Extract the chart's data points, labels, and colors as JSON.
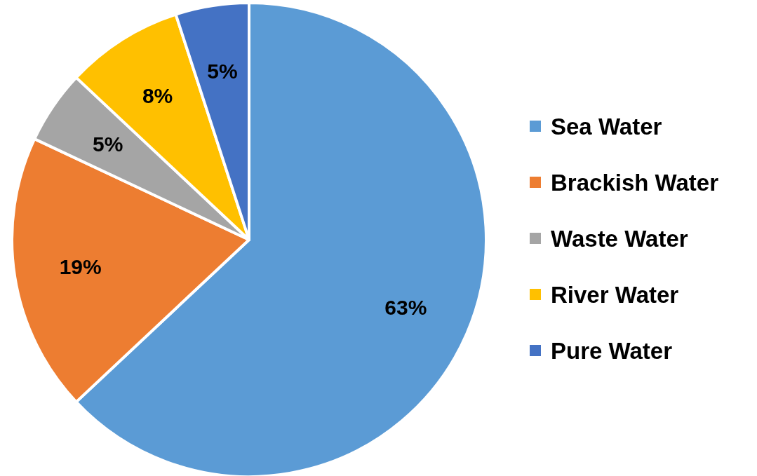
{
  "chart_data": {
    "type": "pie",
    "categories": [
      "Sea Water",
      "Brackish Water",
      "Waste Water",
      "River Water",
      "Pure Water"
    ],
    "values": [
      63,
      19,
      5,
      8,
      5
    ],
    "colors": [
      "#5b9bd5",
      "#ed7d31",
      "#a5a5a5",
      "#ffc000",
      "#4472c4"
    ],
    "value_labels": [
      "63%",
      "19%",
      "5%",
      "8%",
      "5%"
    ],
    "legend": "right"
  }
}
